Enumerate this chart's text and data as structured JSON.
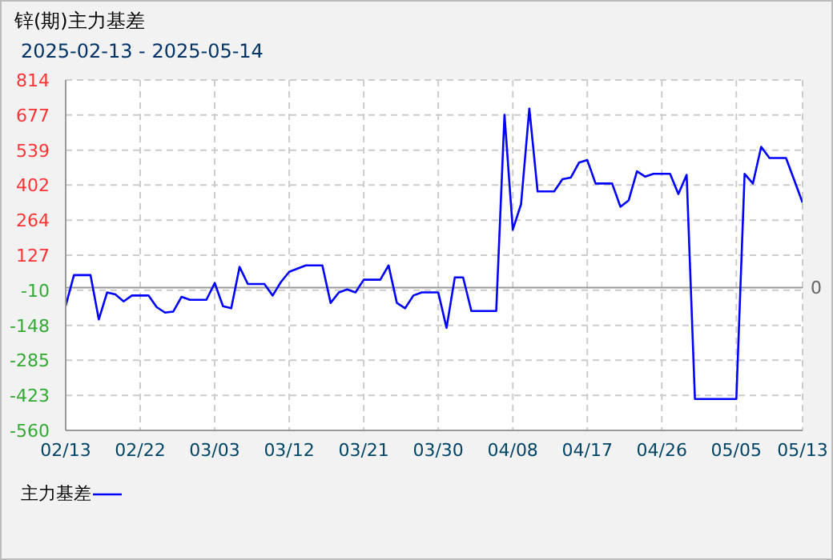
{
  "chart_data": {
    "type": "line",
    "title": "锌(期)主力基差",
    "subtitle": "2025-02-13 - 2025-05-14",
    "x": [
      "--02-13",
      "--02-14",
      "--02-16",
      "--02-17",
      "--02-18",
      "--02-19",
      "--02-20",
      "--02-21",
      "--02-23",
      "--02-24",
      "--02-25",
      "--02-26",
      "--02-27",
      "--02-28",
      "--03-02",
      "--03-03",
      "--03-04",
      "--03-05",
      "--03-06",
      "--03-07",
      "--03-09",
      "--03-10",
      "--03-11",
      "--03-12",
      "--03-14",
      "--03-16",
      "--03-17",
      "--03-18",
      "--03-19",
      "--03-20",
      "--03-21",
      "--03-23",
      "--03-24",
      "--03-25",
      "--03-26",
      "--03-27",
      "--03-28",
      "--03-30",
      "--03-31",
      "--04-01",
      "--04-02",
      "--04-03",
      "--04-06",
      "--04-07",
      "--04-08",
      "--04-09",
      "--04-10",
      "--04-11",
      "--04-13",
      "--04-14",
      "--04-15",
      "--04-16",
      "--04-17",
      "--04-18",
      "--04-20",
      "--04-21",
      "--04-22",
      "--04-23",
      "--04-24",
      "--04-25",
      "--04-27",
      "--04-28",
      "--04-29",
      "--04-30",
      "--05-05",
      "--05-06",
      "--05-07",
      "--05-08",
      "--05-09",
      "--05-11",
      "--05-12",
      "--05-13"
    ],
    "series": [
      {
        "name": "主力基差",
        "color": "#0000ff",
        "values": [
          -71,
          49,
          49,
          -125,
          -19,
          -27,
          -54,
          -31,
          -31,
          -77,
          -98,
          -94,
          -36,
          -48,
          -48,
          18,
          -73,
          -81,
          81,
          14,
          14,
          -31,
          22,
          62,
          87,
          87,
          -60,
          -19,
          -7,
          -19,
          31,
          31,
          87,
          -60,
          -81,
          -31,
          -19,
          -19,
          -158,
          40,
          40,
          -92,
          -92,
          677,
          227,
          327,
          702,
          377,
          377,
          425,
          431,
          490,
          500,
          408,
          408,
          317,
          342,
          456,
          435,
          446,
          446,
          367,
          442,
          -437,
          -437,
          446,
          408,
          552,
          508,
          508,
          421,
          333
        ]
      }
    ],
    "xlim": [
      "--02-13",
      "--05-13"
    ],
    "xticks": [
      {
        "value": "--02-13",
        "label": "02/13"
      },
      {
        "value": "--02-22",
        "label": "02/22"
      },
      {
        "value": "--03-03",
        "label": "03/03"
      },
      {
        "value": "--03-12",
        "label": "03/12"
      },
      {
        "value": "--03-21",
        "label": "03/21"
      },
      {
        "value": "--03-30",
        "label": "03/30"
      },
      {
        "value": "--04-08",
        "label": "04/08"
      },
      {
        "value": "--04-17",
        "label": "04/17"
      },
      {
        "value": "--04-26",
        "label": "04/26"
      },
      {
        "value": "--05-05",
        "label": "05/05"
      },
      {
        "value": "--05-13",
        "label": "05/13"
      }
    ],
    "ylim": [
      -560,
      814
    ],
    "yticks": [
      -560,
      -423,
      -285,
      -148,
      -10,
      127,
      264,
      402,
      539,
      677,
      814
    ],
    "ref_lines": [
      {
        "axis": "y",
        "value": 0,
        "label": "0",
        "color": "#999999"
      }
    ],
    "grid": true,
    "legend": "bottom left",
    "marker": "none",
    "line_style": "solid"
  }
}
